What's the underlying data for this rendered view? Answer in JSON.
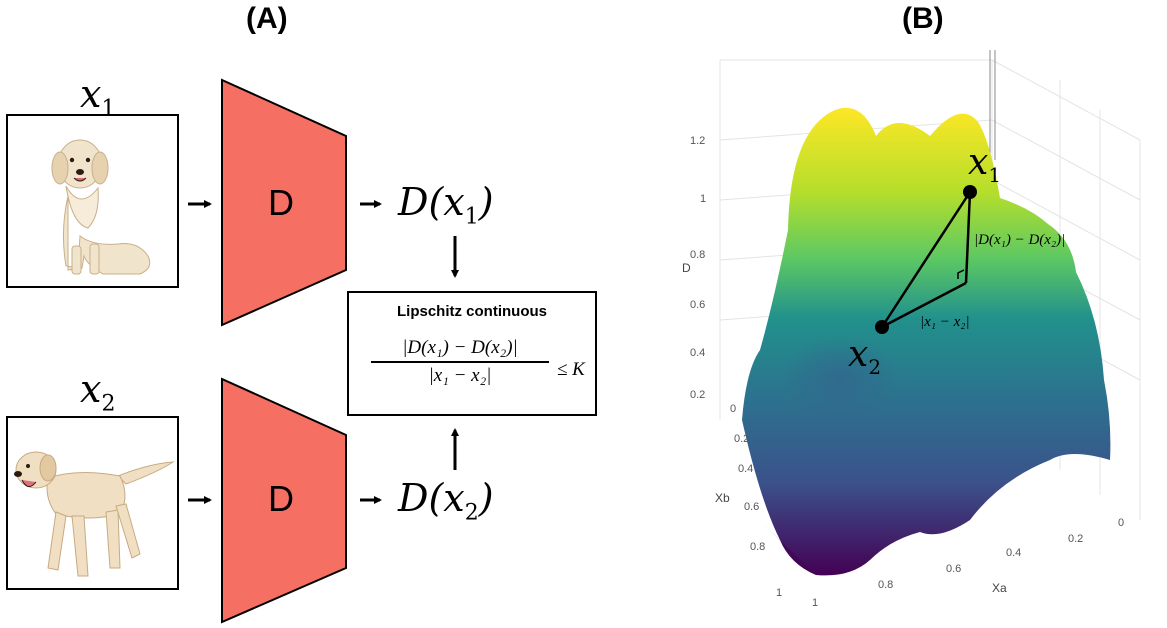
{
  "panel_a": {
    "label": "(A)",
    "input1": {
      "symbol": "x",
      "subscript": "1",
      "image": "golden-retriever-dog-photo"
    },
    "input2": {
      "symbol": "x",
      "subscript": "2",
      "image": "labrador-puppy-dog-photo"
    },
    "discriminator_label": "D",
    "output1": {
      "text": "D(x",
      "sub": "1",
      "close": ")"
    },
    "output2": {
      "text": "D(x",
      "sub": "2",
      "close": ")"
    },
    "lipschitz_box": {
      "title": "Lipschitz continuous",
      "numerator": "|D(x₁) − D(x₂)|",
      "denominator": "|x₁ − x₂|",
      "relation": "≤ K"
    },
    "colors": {
      "discriminator_fill": "#f57063",
      "border": "#000000"
    }
  },
  "panel_b": {
    "label": "(B)",
    "axis_z_label": "D",
    "axis_z_ticks": [
      "1.2",
      "1",
      "0.8",
      "0.6",
      "0.4",
      "0.2"
    ],
    "axis_xb_label": "Xb",
    "axis_xb_ticks": [
      "0",
      "0.2",
      "0.4",
      "0.6",
      "0.8",
      "1"
    ],
    "axis_xa_label": "Xa",
    "axis_xa_ticks": [
      "0",
      "0.2",
      "0.4",
      "0.6",
      "0.8",
      "1"
    ],
    "point1": {
      "symbol": "x",
      "subscript": "1"
    },
    "point2": {
      "symbol": "x",
      "subscript": "2"
    },
    "vertical_edge_label": "|D(x₁) − D(x₂)|",
    "horizontal_edge_label": "|x₁ − x₂|",
    "colormap": [
      "#440154",
      "#31688e",
      "#21918c",
      "#35b779",
      "#90d743",
      "#fde725"
    ]
  }
}
